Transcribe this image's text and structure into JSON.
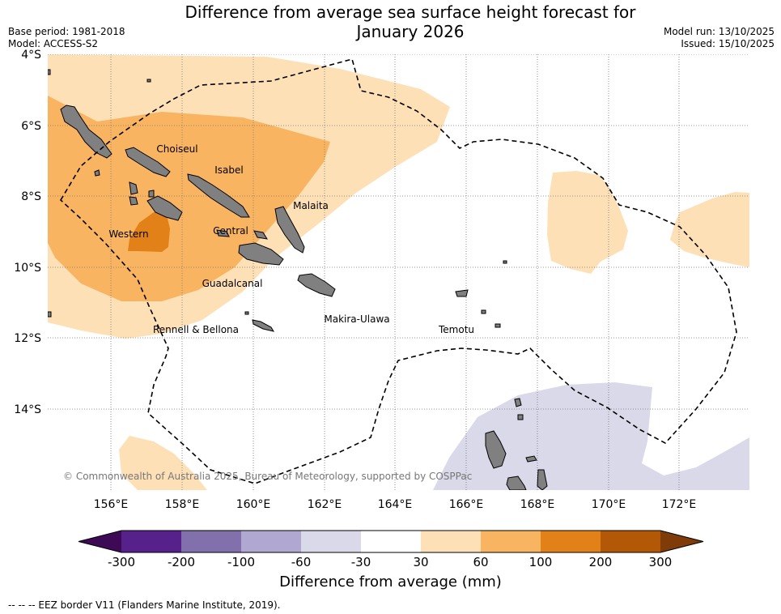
{
  "title": "Difference from average sea surface height forecast for January 2026",
  "title_line1": "Difference from average sea surface height forecast for",
  "title_line2": "January 2026",
  "base_period": "Base period: 1981-2018",
  "model": "Model: ACCESS-S2",
  "model_run": "Model run: 13/10/2025",
  "issued": "Issued: 15/10/2025",
  "lat_labels": [
    "4°S",
    "6°S",
    "8°S",
    "10°S",
    "12°S",
    "14°S"
  ],
  "lon_labels": [
    "156°E",
    "158°E",
    "160°E",
    "162°E",
    "164°E",
    "166°E",
    "168°E",
    "170°E",
    "172°E"
  ],
  "regions": [
    "Choiseul",
    "Isabel",
    "Malaita",
    "Western",
    "Central",
    "Guadalcanal",
    "Rennell & Bellona",
    "Makira-Ulawa",
    "Temotu"
  ],
  "copyright": "© Commonwealth of Australia 2025, Bureau of Meteorology, supported by COSPPac",
  "colorbar": {
    "title": "Difference from average (mm)",
    "ticks": [
      "-300",
      "-200",
      "-100",
      "-60",
      "-30",
      "30",
      "60",
      "100",
      "200",
      "300"
    ],
    "colors": [
      "#3f0a55",
      "#56218a",
      "#8270ad",
      "#b0a8d0",
      "#d9d9ea",
      "#ffffff",
      "#fee0b7",
      "#f9b461",
      "#e18117",
      "#b35806",
      "#7f3b08"
    ]
  },
  "footnote": "--  --  -- EEZ border V11 (Flanders Marine Institute, 2019)."
}
